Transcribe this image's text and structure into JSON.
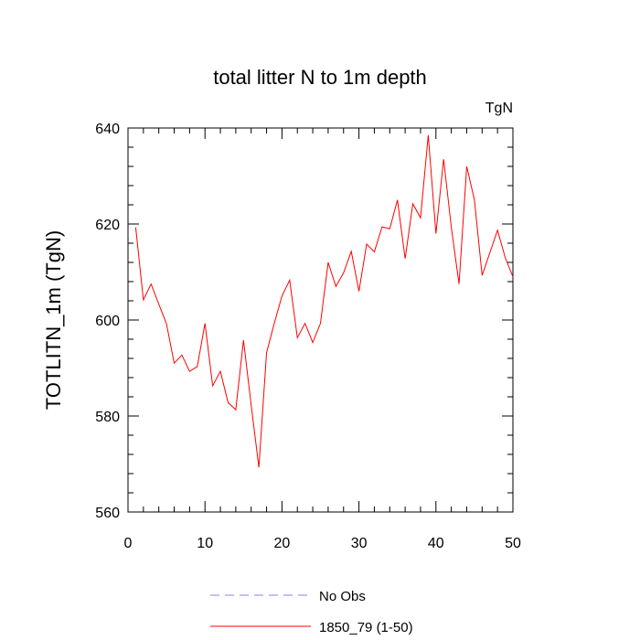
{
  "chart_data": {
    "type": "line",
    "title": "total litter N to 1m depth",
    "units_label": "TgN",
    "ylabel": "TOTLITN_1m  (TgN)",
    "xlabel": "",
    "xlim": [
      0,
      50
    ],
    "ylim": [
      560,
      640
    ],
    "xticks": [
      0,
      10,
      20,
      30,
      40,
      50
    ],
    "yticks": [
      560,
      580,
      600,
      620,
      640
    ],
    "grid": false,
    "legend_position": "bottom",
    "series": [
      {
        "name": "No Obs",
        "color": "#8080ff",
        "style": "dashed",
        "x": [],
        "y": []
      },
      {
        "name": "1850_79 (1-50)",
        "color": "#ff0000",
        "style": "solid",
        "x": [
          1,
          2,
          3,
          4,
          5,
          6,
          7,
          8,
          9,
          10,
          11,
          12,
          13,
          14,
          15,
          16,
          17,
          18,
          19,
          20,
          21,
          22,
          23,
          24,
          25,
          26,
          27,
          28,
          29,
          30,
          31,
          32,
          33,
          34,
          35,
          36,
          37,
          38,
          39,
          40,
          41,
          42,
          43,
          44,
          45,
          46,
          47,
          48,
          49,
          50
        ],
        "y": [
          619.3,
          604.2,
          607.5,
          603.3,
          599.2,
          591.0,
          592.7,
          589.3,
          590.3,
          599.3,
          586.3,
          589.3,
          582.8,
          581.3,
          595.8,
          582.3,
          569.3,
          593.2,
          599.3,
          605.0,
          608.3,
          596.3,
          599.3,
          595.3,
          599.3,
          612.0,
          607.0,
          609.8,
          614.3,
          606.0,
          615.8,
          614.2,
          619.4,
          619.0,
          625.0,
          612.8,
          624.2,
          621.3,
          638.5,
          618.0,
          633.5,
          619.3,
          607.5,
          632.0,
          625.0,
          609.3,
          614.0,
          618.7,
          613.0,
          609.0
        ]
      }
    ]
  }
}
